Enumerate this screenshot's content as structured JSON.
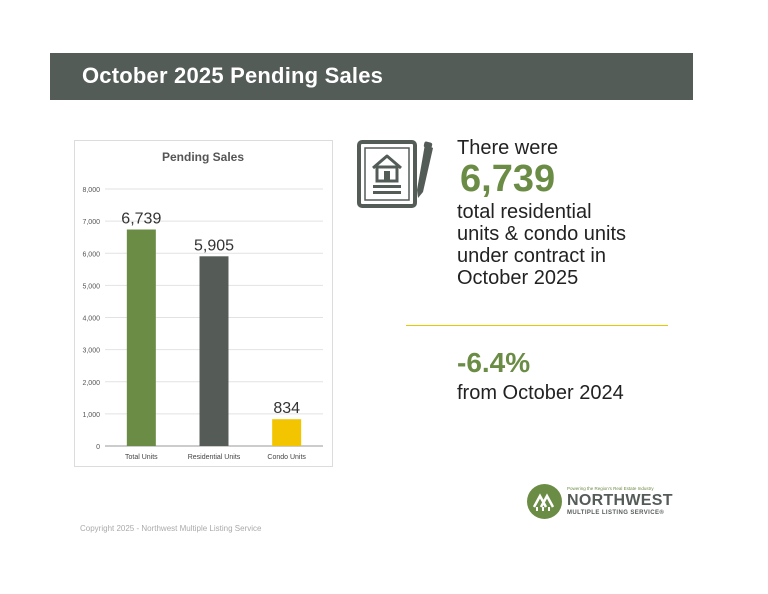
{
  "header": {
    "title": "October 2025 Pending Sales"
  },
  "chart_data": {
    "type": "bar",
    "title": "Pending Sales",
    "categories": [
      "Total Units",
      "Residential Units",
      "Condo Units"
    ],
    "values": [
      6739,
      5905,
      834
    ],
    "value_labels": [
      "6,739",
      "5,905",
      "834"
    ],
    "colors": [
      "#6b8c45",
      "#555c58",
      "#f2c500"
    ],
    "ylim": [
      0,
      8000
    ],
    "yticks": [
      0,
      1000,
      2000,
      3000,
      4000,
      5000,
      6000,
      7000,
      8000
    ],
    "ytick_labels": [
      "0",
      "1,000",
      "2,000",
      "3,000",
      "4,000",
      "5,000",
      "6,000",
      "7,000",
      "8,000"
    ],
    "grid": true,
    "xlabel": "",
    "ylabel": ""
  },
  "stats": {
    "intro": "There were",
    "big_number": "6,739",
    "desc_lines": [
      "total residential",
      "units & condo units",
      "under contract in",
      "October 2025"
    ],
    "change_value": "-6.4%",
    "change_desc": "from October 2024"
  },
  "logo": {
    "tagline": "Powering the Region's Real Estate Industry",
    "name": "NORTHWEST",
    "subname": "MULTIPLE LISTING SERVICE®"
  },
  "footer": {
    "copyright": "Copyright 2025 - Northwest Multiple Listing Service"
  },
  "colors": {
    "accent_green": "#6b8c45",
    "header_bg": "#545c58",
    "divider": "#e8c800"
  }
}
